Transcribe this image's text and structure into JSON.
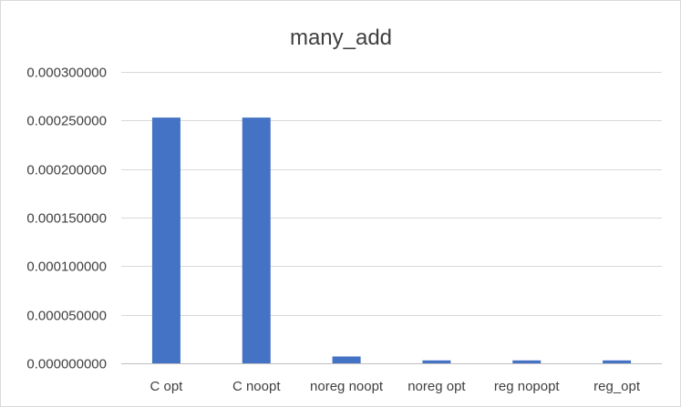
{
  "chart_data": {
    "type": "bar",
    "title": "many_add",
    "xlabel": "",
    "ylabel": "",
    "categories": [
      "C opt",
      "C noopt",
      "noreg noopt",
      "noreg opt",
      "reg nopopt",
      "reg_opt"
    ],
    "values": [
      0.000253,
      0.000253,
      7e-06,
      3e-06,
      3e-06,
      3e-06
    ],
    "ylim": [
      0,
      0.0003
    ],
    "yticks": [
      0,
      5e-05,
      0.0001,
      0.00015,
      0.0002,
      0.00025,
      0.0003
    ],
    "ytick_labels": [
      "0.000000000",
      "0.000050000",
      "0.000100000",
      "0.000150000",
      "0.000200000",
      "0.000250000",
      "0.000300000"
    ],
    "grid": true,
    "legend": "none",
    "bar_color": "#4472c4"
  }
}
